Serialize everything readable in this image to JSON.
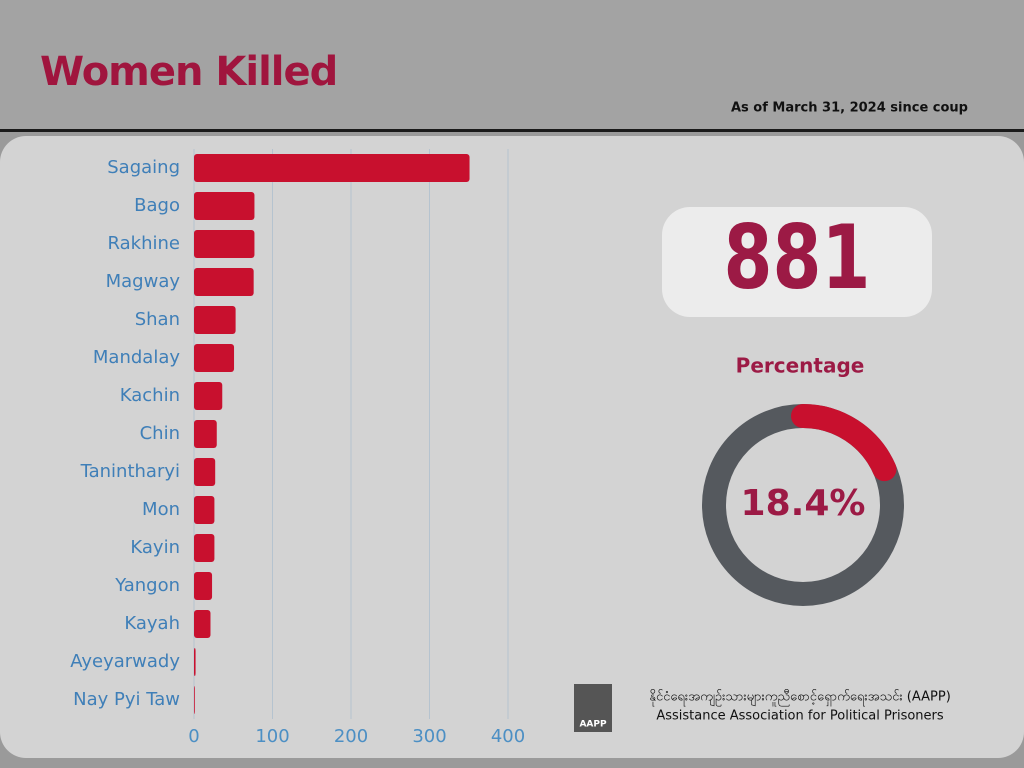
{
  "header": {
    "title": "Women Killed",
    "subtitle": "As of March 31, 2024 since coup"
  },
  "summary": {
    "total": 881
  },
  "chart_data": [
    {
      "type": "hbar",
      "categories": [
        "Sagaing",
        "Bago",
        "Rakhine",
        "Magway",
        "Shan",
        "Mandalay",
        "Kachin",
        "Chin",
        "Tanintharyi",
        "Mon",
        "Kayin",
        "Yangon",
        "Kayah",
        "Ayeyarwady",
        "Nay Pyi Taw"
      ],
      "values": [
        351,
        77,
        77,
        76,
        53,
        51,
        36,
        29,
        27,
        26,
        26,
        23,
        21,
        2,
        1
      ],
      "color": "#c8102e",
      "xlim": [
        0,
        400
      ],
      "xticks": [
        0,
        100,
        200,
        300,
        400
      ],
      "grid": true
    },
    {
      "type": "donut",
      "title": "Percentage",
      "values": [
        18.4
      ],
      "value_labels": [
        "18.4%"
      ],
      "color": "#c8102e",
      "track_color": "#55595e"
    }
  ],
  "footer": {
    "org_local": "နိုင်ငံရေးအကျဉ်းသားများကူညီစောင့်ရှောက်ရေးအသင်း (AAPP)",
    "org_english": "Assistance Association for Political Prisoners",
    "logo_text": "AAPP"
  }
}
